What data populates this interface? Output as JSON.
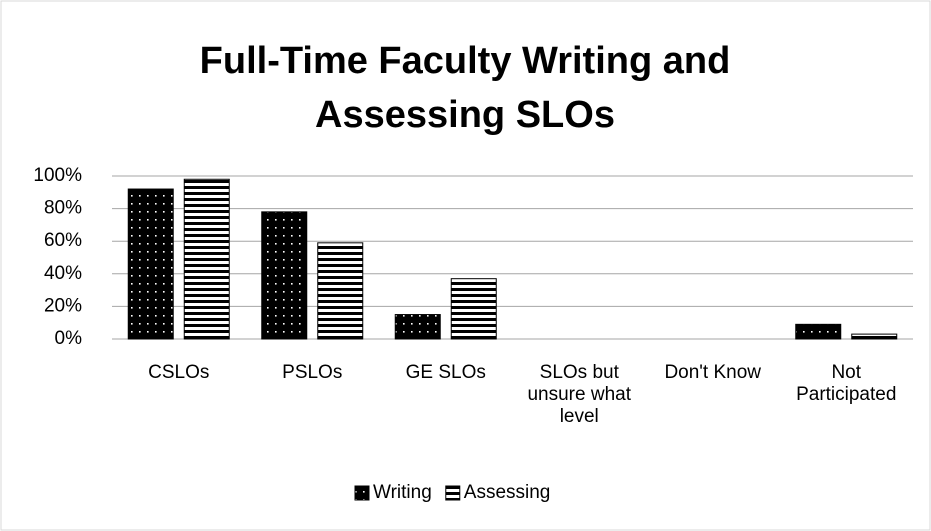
{
  "chart_data": {
    "type": "bar",
    "title": "Full-Time Faculty Writing and Assessing SLOs",
    "categories": [
      "CSLOs",
      "PSLOs",
      "GE SLOs",
      "SLOs but unsure what level",
      "Don't Know",
      "Not Participated"
    ],
    "series": [
      {
        "name": "Writing",
        "color": "#000000",
        "values": [
          92,
          78,
          15,
          0,
          0,
          9
        ]
      },
      {
        "name": "Assessing",
        "color": "#ffffff",
        "values": [
          98,
          59,
          37,
          0,
          0,
          3
        ]
      }
    ],
    "ylim": [
      0,
      100
    ],
    "yticks": [
      {
        "value": 0,
        "label": "0%"
      },
      {
        "value": 20,
        "label": "20%"
      },
      {
        "value": 40,
        "label": "40%"
      },
      {
        "value": 60,
        "label": "60%"
      },
      {
        "value": 80,
        "label": "80%"
      },
      {
        "value": 100,
        "label": "100%"
      }
    ],
    "grid": true,
    "legend": "bottom"
  }
}
